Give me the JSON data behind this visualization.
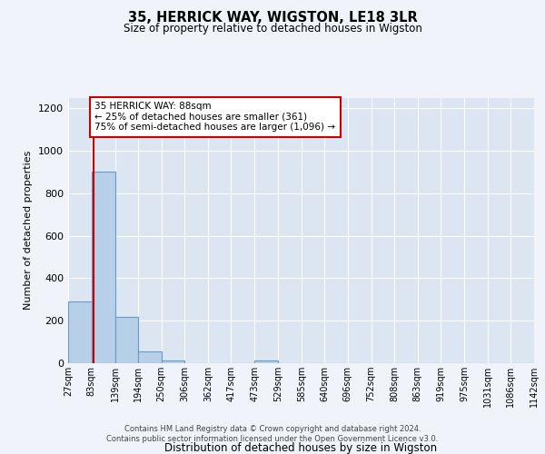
{
  "title1": "35, HERRICK WAY, WIGSTON, LE18 3LR",
  "title2": "Size of property relative to detached houses in Wigston",
  "xlabel": "Distribution of detached houses by size in Wigston",
  "ylabel": "Number of detached properties",
  "bin_labels": [
    "27sqm",
    "83sqm",
    "139sqm",
    "194sqm",
    "250sqm",
    "306sqm",
    "362sqm",
    "417sqm",
    "473sqm",
    "529sqm",
    "585sqm",
    "640sqm",
    "696sqm",
    "752sqm",
    "808sqm",
    "863sqm",
    "919sqm",
    "975sqm",
    "1031sqm",
    "1086sqm",
    "1142sqm"
  ],
  "bin_edges": [
    27,
    83,
    139,
    194,
    250,
    306,
    362,
    417,
    473,
    529,
    585,
    640,
    696,
    752,
    808,
    863,
    919,
    975,
    1031,
    1086,
    1142
  ],
  "bar_heights": [
    290,
    900,
    220,
    55,
    12,
    0,
    0,
    0,
    12,
    0,
    0,
    0,
    0,
    0,
    0,
    0,
    0,
    0,
    0,
    0
  ],
  "bar_color": "#b8cfe8",
  "bar_edge_color": "#6699cc",
  "property_size": 88,
  "property_line_color": "#cc0000",
  "annotation_line1": "35 HERRICK WAY: 88sqm",
  "annotation_line2": "← 25% of detached houses are smaller (361)",
  "annotation_line3": "75% of semi-detached houses are larger (1,096) →",
  "annotation_box_color": "#ffffff",
  "annotation_box_edge_color": "#cc0000",
  "ylim": [
    0,
    1250
  ],
  "yticks": [
    0,
    200,
    400,
    600,
    800,
    1000,
    1200
  ],
  "footer_text": "Contains HM Land Registry data © Crown copyright and database right 2024.\nContains public sector information licensed under the Open Government Licence v3.0.",
  "bg_color": "#f0f4fa",
  "plot_bg_color": "#dce6f2"
}
